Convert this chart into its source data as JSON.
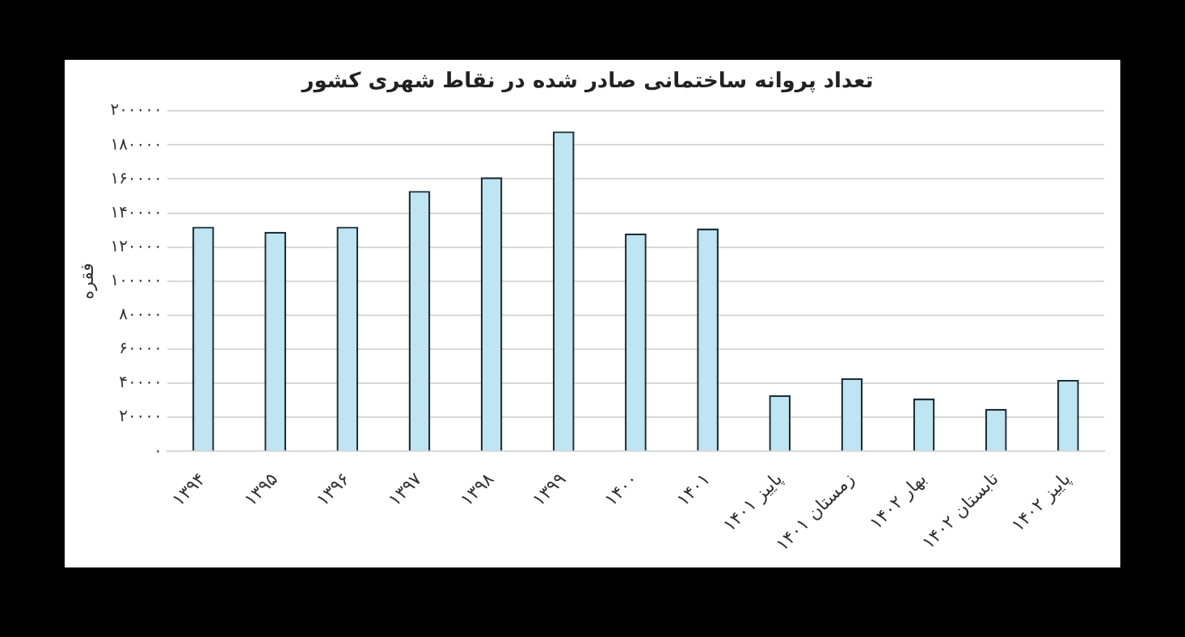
{
  "chart_data": {
    "type": "bar",
    "title": "تعداد پروانه ساختمانی صادر شده در نقاط شهری کشور",
    "ylabel": "فقره",
    "categories": [
      "۱۳۹۴",
      "۱۳۹۵",
      "۱۳۹۶",
      "۱۳۹۷",
      "۱۳۹۸",
      "۱۳۹۹",
      "۱۴۰۰",
      "۱۴۰۱",
      "پاییز ۱۴۰۱",
      "زمستان ۱۴۰۱",
      "بهار ۱۴۰۲",
      "تابستان ۱۴۰۲",
      "پاییز ۱۴۰۲"
    ],
    "values": [
      132000,
      129000,
      132000,
      153000,
      161000,
      188000,
      128000,
      131000,
      33000,
      43000,
      31000,
      25000,
      42000
    ],
    "color": "#bfe4f2",
    "ylim": [
      0,
      200000
    ],
    "yticks": [
      {
        "value": 0,
        "label": "۰"
      },
      {
        "value": 20000,
        "label": "۲۰۰۰۰"
      },
      {
        "value": 40000,
        "label": "۴۰۰۰۰"
      },
      {
        "value": 60000,
        "label": "۶۰۰۰۰"
      },
      {
        "value": 80000,
        "label": "۸۰۰۰۰"
      },
      {
        "value": 100000,
        "label": "۱۰۰۰۰۰"
      },
      {
        "value": 120000,
        "label": "۱۲۰۰۰۰"
      },
      {
        "value": 140000,
        "label": "۱۴۰۰۰۰"
      },
      {
        "value": 160000,
        "label": "۱۶۰۰۰۰"
      },
      {
        "value": 180000,
        "label": "۱۸۰۰۰۰"
      },
      {
        "value": 200000,
        "label": "۲۰۰۰۰۰"
      }
    ],
    "grid": "y",
    "legend": false
  }
}
